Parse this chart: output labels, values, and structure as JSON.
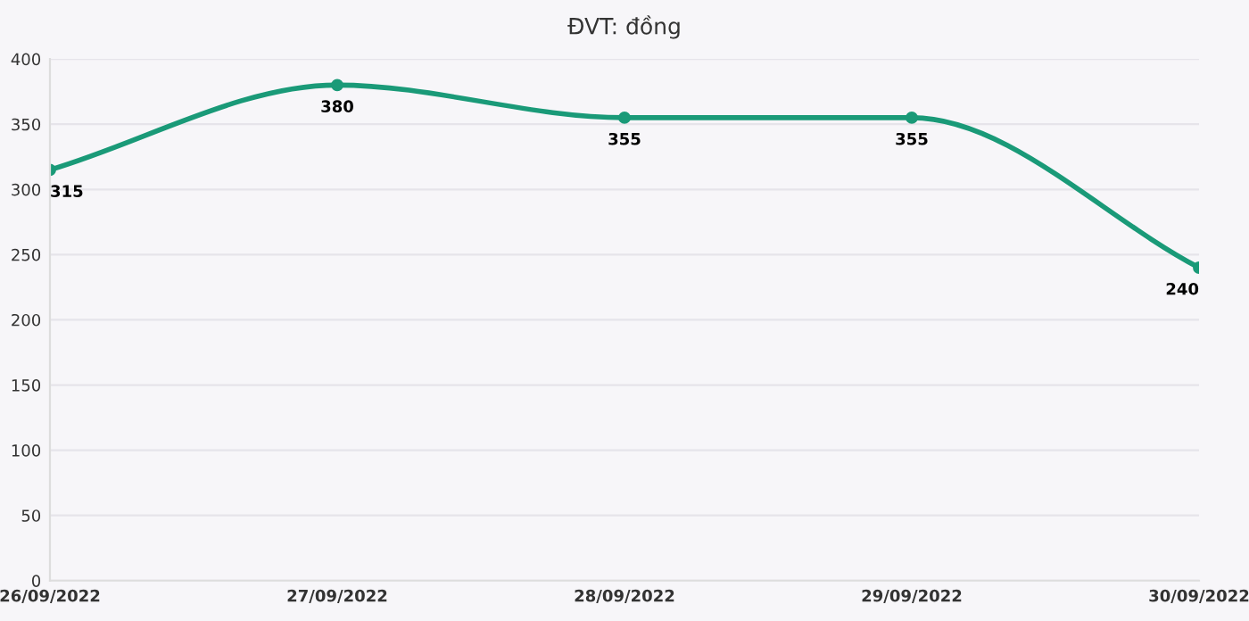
{
  "chart_data": {
    "type": "line",
    "title": "ĐVT: đồng",
    "categories": [
      "26/09/2022",
      "27/09/2022",
      "28/09/2022",
      "29/09/2022",
      "30/09/2022"
    ],
    "series": [
      {
        "color": "#1a9a78",
        "values": [
          315,
          380,
          355,
          355,
          240
        ]
      }
    ],
    "ylim": [
      0,
      400
    ],
    "yticks": [
      0,
      50,
      100,
      150,
      200,
      250,
      300,
      350,
      400
    ],
    "grid": "y",
    "marker": "circle",
    "line_style": "solid",
    "data_labels": true
  }
}
